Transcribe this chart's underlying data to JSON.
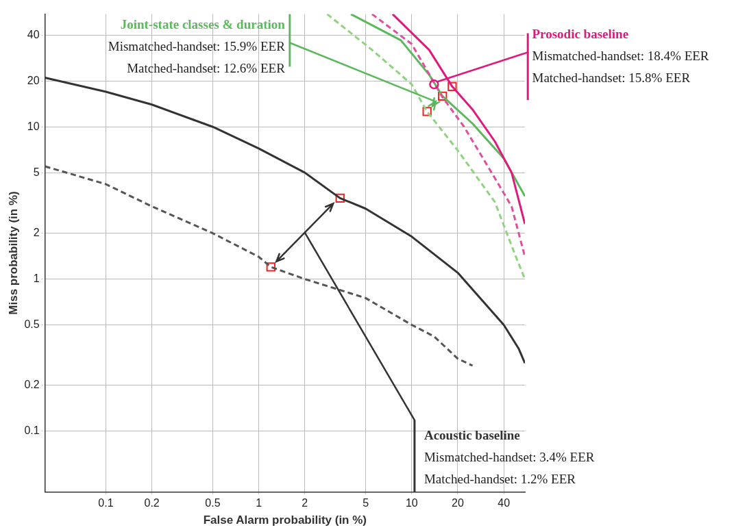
{
  "chart_data": {
    "type": "line",
    "xlabel": "False Alarm probability (in %)",
    "ylabel": "Miss probability (in %)",
    "xlim": [
      0.04,
      55
    ],
    "ylim": [
      0.04,
      55
    ],
    "xticks": [
      0.1,
      0.2,
      0.5,
      1,
      2,
      5,
      10,
      20,
      40
    ],
    "yticks": [
      0.1,
      0.2,
      0.5,
      1,
      2,
      5,
      10,
      20,
      40
    ],
    "grid": true,
    "legend": false,
    "log": "xy",
    "series": [
      {
        "color": "#e0197d",
        "line_style": "solid",
        "x": [
          7.5,
          13,
          18.4,
          25,
          35,
          45,
          55
        ],
        "values": [
          55,
          32,
          18.4,
          13,
          8,
          5,
          2.3
        ]
      },
      {
        "color": "#e04f9c",
        "line_style": "dashed",
        "x": [
          5.5,
          10,
          15.8,
          22,
          35,
          45,
          55
        ],
        "values": [
          55,
          35,
          15.8,
          10,
          4.6,
          3,
          1.4
        ]
      },
      {
        "color": "#5cb85c",
        "line_style": "solid",
        "x": [
          4,
          8.5,
          13,
          15.9,
          25,
          40,
          55
        ],
        "values": [
          55,
          37,
          22,
          15.9,
          10.5,
          6.2,
          3.5
        ]
      },
      {
        "color": "#8fd27f",
        "line_style": "dashed",
        "x": [
          2.8,
          5.5,
          10,
          12.6,
          20,
          35,
          48,
          55
        ],
        "values": [
          55,
          32,
          19,
          12.6,
          7,
          3.2,
          1.4,
          1.0
        ]
      },
      {
        "color": "#333333",
        "line_style": "solid",
        "x": [
          0.04,
          0.1,
          0.2,
          0.5,
          1,
          2,
          3.4,
          5,
          10,
          20,
          28,
          40,
          50,
          55
        ],
        "values": [
          21,
          17,
          14,
          10,
          7.2,
          5,
          3.4,
          2.9,
          1.9,
          1.1,
          0.75,
          0.5,
          0.35,
          0.28
        ]
      },
      {
        "color": "#555555",
        "line_style": "dashed",
        "x": [
          0.04,
          0.1,
          0.2,
          0.5,
          1,
          1.2,
          2,
          5,
          10,
          14,
          20,
          25
        ],
        "values": [
          5.5,
          4.2,
          3,
          2,
          1.4,
          1.2,
          1.0,
          0.75,
          0.5,
          0.42,
          0.3,
          0.27
        ]
      },
      {
        "type": "scatter",
        "marker": "square",
        "color": "#ee2222",
        "x": [
          18.4,
          15.9,
          12.6,
          3.4,
          1.2
        ],
        "values": [
          18.4,
          15.9,
          12.6,
          3.4,
          1.2
        ]
      }
    ],
    "annotations": [
      {
        "text": "Prosodic baseline",
        "x": 14,
        "y": 19
      },
      "Mismatched-handset: 18.4% EER",
      "Matched-handset: 15.8% EER",
      "Joint-state classes & duration",
      "Mismatched-handset: 15.9% EER",
      "Matched-handset: 12.6% EER",
      "Acoustic baseline",
      "Mismatched-handset: 3.4% EER",
      "Matched-handset: 1.2% EER"
    ]
  }
}
